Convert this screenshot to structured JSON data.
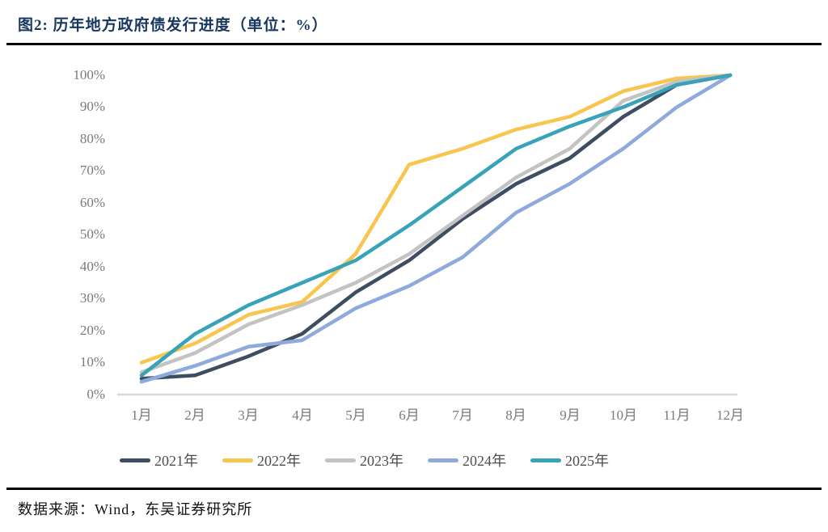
{
  "header": {
    "title": "图2:  历年地方政府债发行进度（单位：%）"
  },
  "footer": {
    "source": "数据来源：Wind，东吴证券研究所"
  },
  "chart_data": {
    "type": "line",
    "title": "图2: 历年地方政府债发行进度（单位：%）",
    "unit": "%",
    "categories": [
      "1月",
      "2月",
      "3月",
      "4月",
      "5月",
      "6月",
      "7月",
      "8月",
      "9月",
      "10月",
      "11月",
      "12月"
    ],
    "y_ticks": [
      "100%",
      "90%",
      "80%",
      "70%",
      "60%",
      "50%",
      "40%",
      "30%",
      "20%",
      "10%",
      "0%"
    ],
    "ylim": [
      0,
      100
    ],
    "grid": false,
    "legend_position": "bottom",
    "axis_line_color": "#D9D9D9",
    "series": [
      {
        "name": "2021年",
        "color": "#3F4D63",
        "values": [
          5,
          6,
          12,
          19,
          32,
          42,
          55,
          66,
          74,
          87,
          97,
          100
        ]
      },
      {
        "name": "2022年",
        "color": "#F8C64F",
        "values": [
          10,
          16,
          25,
          29,
          44,
          72,
          77,
          83,
          87,
          95,
          99,
          100
        ]
      },
      {
        "name": "2023年",
        "color": "#C3C3C3",
        "values": [
          7,
          13,
          22,
          28,
          35,
          44,
          56,
          68,
          77,
          92,
          98,
          100
        ]
      },
      {
        "name": "2024年",
        "color": "#8EA9DB",
        "values": [
          4,
          9,
          15,
          17,
          27,
          34,
          43,
          57,
          66,
          77,
          90,
          100
        ]
      },
      {
        "name": "2025年",
        "color": "#38A3B8",
        "values": [
          6,
          19,
          28,
          35,
          42,
          53,
          65,
          77,
          84,
          90,
          97,
          100
        ]
      }
    ]
  }
}
